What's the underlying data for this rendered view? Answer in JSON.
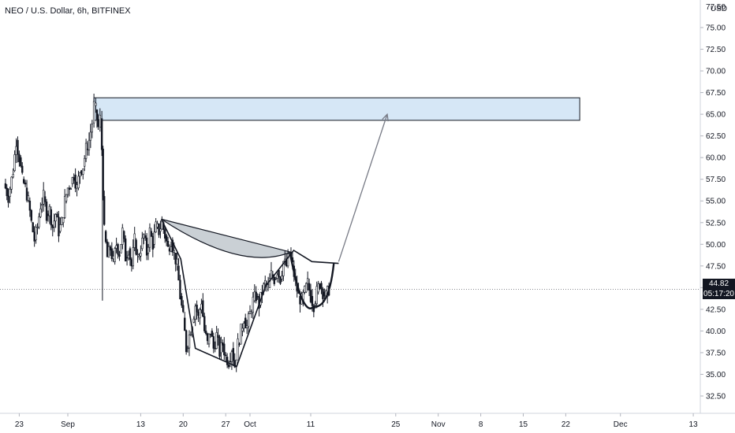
{
  "header": {
    "symbol": "NEO / U.S. Dollar",
    "interval": "6h",
    "exchange": "BITFINEX"
  },
  "price_scale": {
    "currency": "USD",
    "top_partial_label": "77.50"
  },
  "last_price": {
    "value": "44.82",
    "countdown": "05:17:20"
  },
  "colors": {
    "candle": "#131722",
    "axis_text": "#131722",
    "last_price_line": "#131722",
    "zone_fill": "#cfe3f5",
    "pattern_fill": "#c7cdd3",
    "target_arrow": "#787b86"
  },
  "chart_data": {
    "type": "candlestick",
    "title": "",
    "xlabel": "",
    "ylabel": "",
    "ylim": [
      30.5,
      77.6
    ],
    "y_ticks": [
      "32.50",
      "35.00",
      "37.50",
      "40.00",
      "42.50",
      "45.00",
      "47.50",
      "50.00",
      "52.50",
      "55.00",
      "57.50",
      "60.00",
      "62.50",
      "65.00",
      "67.50",
      "70.00",
      "72.50",
      "75.00"
    ],
    "x_ticks": [
      {
        "label": "23",
        "day": -8
      },
      {
        "label": "Sep",
        "day": 0
      },
      {
        "label": "13",
        "day": 12
      },
      {
        "label": "20",
        "day": 19
      },
      {
        "label": "27",
        "day": 26
      },
      {
        "label": "Oct",
        "day": 30
      },
      {
        "label": "11",
        "day": 40
      },
      {
        "label": "25",
        "day": 54
      },
      {
        "label": "Nov",
        "day": 61
      },
      {
        "label": "8",
        "day": 68
      },
      {
        "label": "15",
        "day": 75
      },
      {
        "label": "22",
        "day": 82
      },
      {
        "label": "Dec",
        "day": 91
      },
      {
        "label": "13",
        "day": 103
      }
    ],
    "last_price": 44.82,
    "price_path": [
      [
        -10.5,
        57.0
      ],
      [
        -9.8,
        55.5
      ],
      [
        -9.0,
        58.5
      ],
      [
        -8.5,
        62.0
      ],
      [
        -8.0,
        60.0
      ],
      [
        -7.5,
        57.5
      ],
      [
        -7.0,
        56.5
      ],
      [
        -6.5,
        55.0
      ],
      [
        -6.0,
        52.5
      ],
      [
        -5.5,
        50.5
      ],
      [
        -5.0,
        52.0
      ],
      [
        -4.5,
        54.5
      ],
      [
        -4.0,
        55.5
      ],
      [
        -3.5,
        53.5
      ],
      [
        -3.0,
        54.0
      ],
      [
        -2.5,
        52.0
      ],
      [
        -2.0,
        53.5
      ],
      [
        -1.5,
        51.5
      ],
      [
        -1.0,
        52.5
      ],
      [
        -0.5,
        55.0
      ],
      [
        0.0,
        56.5
      ],
      [
        0.5,
        57.0
      ],
      [
        1.0,
        58.0
      ],
      [
        1.5,
        56.5
      ],
      [
        2.0,
        58.5
      ],
      [
        2.5,
        59.0
      ],
      [
        3.0,
        61.0
      ],
      [
        3.5,
        62.0
      ],
      [
        4.0,
        64.0
      ],
      [
        4.3,
        66.0
      ],
      [
        4.6,
        65.5
      ],
      [
        5.0,
        63.5
      ],
      [
        5.3,
        64.5
      ],
      [
        5.6,
        61.0
      ],
      [
        6.0,
        51.5
      ],
      [
        6.5,
        48.5
      ],
      [
        7.0,
        49.5
      ],
      [
        7.5,
        48.0
      ],
      [
        8.0,
        50.0
      ],
      [
        8.5,
        49.0
      ],
      [
        9.0,
        51.5
      ],
      [
        9.5,
        48.5
      ],
      [
        10.0,
        49.5
      ],
      [
        10.5,
        47.5
      ],
      [
        11.0,
        50.5
      ],
      [
        11.5,
        48.5
      ],
      [
        12.0,
        49.5
      ],
      [
        12.5,
        51.0
      ],
      [
        13.0,
        49.0
      ],
      [
        13.5,
        51.5
      ],
      [
        14.0,
        50.0
      ],
      [
        14.5,
        52.0
      ],
      [
        15.0,
        51.5
      ],
      [
        15.5,
        52.5
      ],
      [
        16.0,
        51.0
      ],
      [
        16.5,
        49.5
      ],
      [
        17.0,
        50.5
      ],
      [
        17.5,
        49.0
      ],
      [
        18.0,
        47.5
      ],
      [
        18.5,
        44.0
      ],
      [
        19.0,
        41.5
      ],
      [
        19.5,
        38.0
      ],
      [
        20.0,
        39.5
      ],
      [
        20.5,
        41.0
      ],
      [
        21.0,
        43.0
      ],
      [
        21.5,
        41.5
      ],
      [
        22.0,
        43.5
      ],
      [
        22.5,
        40.0
      ],
      [
        23.0,
        38.5
      ],
      [
        23.5,
        40.0
      ],
      [
        24.0,
        38.0
      ],
      [
        24.5,
        39.5
      ],
      [
        25.0,
        37.5
      ],
      [
        25.5,
        38.5
      ],
      [
        26.0,
        37.0
      ],
      [
        26.5,
        36.5
      ],
      [
        27.0,
        38.0
      ],
      [
        27.5,
        36.0
      ],
      [
        28.0,
        38.5
      ],
      [
        28.5,
        40.0
      ],
      [
        29.0,
        41.5
      ],
      [
        29.5,
        40.5
      ],
      [
        30.0,
        42.0
      ],
      [
        30.5,
        43.5
      ],
      [
        31.0,
        44.0
      ],
      [
        31.5,
        43.0
      ],
      [
        32.0,
        44.5
      ],
      [
        32.5,
        45.5
      ],
      [
        33.0,
        45.0
      ],
      [
        33.5,
        46.5
      ],
      [
        34.0,
        46.0
      ],
      [
        34.5,
        47.0
      ],
      [
        35.0,
        46.0
      ],
      [
        35.5,
        48.0
      ],
      [
        36.0,
        47.5
      ],
      [
        36.5,
        49.0
      ],
      [
        37.0,
        47.5
      ],
      [
        37.5,
        45.5
      ],
      [
        38.0,
        44.0
      ],
      [
        38.5,
        43.5
      ],
      [
        39.0,
        44.5
      ],
      [
        39.5,
        45.5
      ],
      [
        40.0,
        44.0
      ],
      [
        40.5,
        43.0
      ],
      [
        41.0,
        44.5
      ],
      [
        41.5,
        45.5
      ],
      [
        42.0,
        44.5
      ],
      [
        42.5,
        44.0
      ],
      [
        43.0,
        44.82
      ]
    ],
    "annotations": {
      "resistance_zone": {
        "day_start": 4.3,
        "day_end": 84.3,
        "price_low": 64.3,
        "price_high": 66.9
      },
      "cup_points": [
        [
          15.4,
          52.9
        ],
        [
          18.6,
          48.3
        ],
        [
          21.0,
          38.0
        ],
        [
          27.8,
          35.9
        ],
        [
          32.6,
          45.2
        ],
        [
          37.2,
          49.3
        ],
        [
          40.2,
          48.0
        ],
        [
          44.6,
          47.8
        ]
      ],
      "handle_curve": {
        "start": [
          36.7,
          48.6
        ],
        "bottom": [
          40.5,
          42.8
        ],
        "end": [
          43.8,
          47.8
        ]
      },
      "neckline_shade": {
        "left": [
          15.4,
          52.9
        ],
        "right": [
          36.7,
          49.1
        ],
        "sag_price": 48.8
      },
      "target_arrow": {
        "from": [
          44.6,
          48.0
        ],
        "to": [
          52.6,
          65.0
        ]
      }
    }
  }
}
